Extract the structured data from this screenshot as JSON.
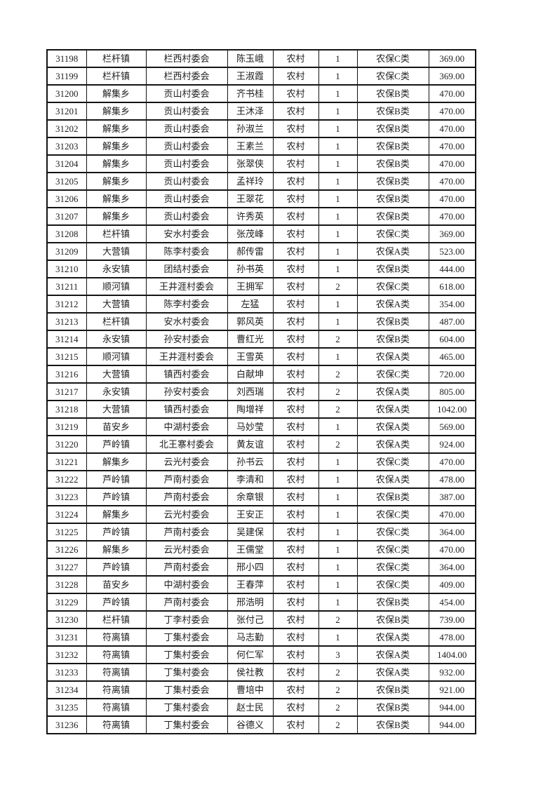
{
  "colors": {
    "page_background": "#ffffff",
    "table_border": "#141414",
    "text": "#1f1f1f"
  },
  "table": {
    "rows": [
      [
        "31198",
        "栏杆镇",
        "栏西村委会",
        "陈玉峨",
        "农村",
        "1",
        "农保C类",
        "369.00"
      ],
      [
        "31199",
        "栏杆镇",
        "栏西村委会",
        "王淑霞",
        "农村",
        "1",
        "农保C类",
        "369.00"
      ],
      [
        "31200",
        "解集乡",
        "贡山村委会",
        "齐书桂",
        "农村",
        "1",
        "农保B类",
        "470.00"
      ],
      [
        "31201",
        "解集乡",
        "贡山村委会",
        "王沐泽",
        "农村",
        "1",
        "农保B类",
        "470.00"
      ],
      [
        "31202",
        "解集乡",
        "贡山村委会",
        "孙淑兰",
        "农村",
        "1",
        "农保B类",
        "470.00"
      ],
      [
        "31203",
        "解集乡",
        "贡山村委会",
        "王素兰",
        "农村",
        "1",
        "农保B类",
        "470.00"
      ],
      [
        "31204",
        "解集乡",
        "贡山村委会",
        "张翠侠",
        "农村",
        "1",
        "农保B类",
        "470.00"
      ],
      [
        "31205",
        "解集乡",
        "贡山村委会",
        "孟祥玲",
        "农村",
        "1",
        "农保B类",
        "470.00"
      ],
      [
        "31206",
        "解集乡",
        "贡山村委会",
        "王翠花",
        "农村",
        "1",
        "农保B类",
        "470.00"
      ],
      [
        "31207",
        "解集乡",
        "贡山村委会",
        "许秀英",
        "农村",
        "1",
        "农保B类",
        "470.00"
      ],
      [
        "31208",
        "栏杆镇",
        "安水村委会",
        "张茂峰",
        "农村",
        "1",
        "农保C类",
        "369.00"
      ],
      [
        "31209",
        "大营镇",
        "陈李村委会",
        "郝传雷",
        "农村",
        "1",
        "农保A类",
        "523.00"
      ],
      [
        "31210",
        "永安镇",
        "团结村委会",
        "孙书英",
        "农村",
        "1",
        "农保B类",
        "444.00"
      ],
      [
        "31211",
        "顺河镇",
        "王井涯村委会",
        "王拥军",
        "农村",
        "2",
        "农保C类",
        "618.00"
      ],
      [
        "31212",
        "大营镇",
        "陈李村委会",
        "左猛",
        "农村",
        "1",
        "农保A类",
        "354.00"
      ],
      [
        "31213",
        "栏杆镇",
        "安水村委会",
        "郭风英",
        "农村",
        "1",
        "农保B类",
        "487.00"
      ],
      [
        "31214",
        "永安镇",
        "孙安村委会",
        "曹红光",
        "农村",
        "2",
        "农保B类",
        "604.00"
      ],
      [
        "31215",
        "顺河镇",
        "王井涯村委会",
        "王雪英",
        "农村",
        "1",
        "农保A类",
        "465.00"
      ],
      [
        "31216",
        "大营镇",
        "镇西村委会",
        "白献坤",
        "农村",
        "2",
        "农保C类",
        "720.00"
      ],
      [
        "31217",
        "永安镇",
        "孙安村委会",
        "刘西瑞",
        "农村",
        "2",
        "农保A类",
        "805.00"
      ],
      [
        "31218",
        "大营镇",
        "镇西村委会",
        "陶增祥",
        "农村",
        "2",
        "农保A类",
        "1042.00"
      ],
      [
        "31219",
        "苗安乡",
        "中湖村委会",
        "马妙莹",
        "农村",
        "1",
        "农保A类",
        "569.00"
      ],
      [
        "31220",
        "芦岭镇",
        "北王寨村委会",
        "黄友谊",
        "农村",
        "2",
        "农保A类",
        "924.00"
      ],
      [
        "31221",
        "解集乡",
        "云光村委会",
        "孙书云",
        "农村",
        "1",
        "农保C类",
        "470.00"
      ],
      [
        "31222",
        "芦岭镇",
        "芦南村委会",
        "李清和",
        "农村",
        "1",
        "农保A类",
        "478.00"
      ],
      [
        "31223",
        "芦岭镇",
        "芦南村委会",
        "余章银",
        "农村",
        "1",
        "农保B类",
        "387.00"
      ],
      [
        "31224",
        "解集乡",
        "云光村委会",
        "王安正",
        "农村",
        "1",
        "农保C类",
        "470.00"
      ],
      [
        "31225",
        "芦岭镇",
        "芦南村委会",
        "吴建保",
        "农村",
        "1",
        "农保C类",
        "364.00"
      ],
      [
        "31226",
        "解集乡",
        "云光村委会",
        "王儒堂",
        "农村",
        "1",
        "农保C类",
        "470.00"
      ],
      [
        "31227",
        "芦岭镇",
        "芦南村委会",
        "邢小四",
        "农村",
        "1",
        "农保C类",
        "364.00"
      ],
      [
        "31228",
        "苗安乡",
        "中湖村委会",
        "王春萍",
        "农村",
        "1",
        "农保C类",
        "409.00"
      ],
      [
        "31229",
        "芦岭镇",
        "芦南村委会",
        "邢浩明",
        "农村",
        "1",
        "农保B类",
        "454.00"
      ],
      [
        "31230",
        "栏杆镇",
        "丁李村委会",
        "张付己",
        "农村",
        "2",
        "农保B类",
        "739.00"
      ],
      [
        "31231",
        "符离镇",
        "丁集村委会",
        "马志勤",
        "农村",
        "1",
        "农保A类",
        "478.00"
      ],
      [
        "31232",
        "符离镇",
        "丁集村委会",
        "何仁军",
        "农村",
        "3",
        "农保A类",
        "1404.00"
      ],
      [
        "31233",
        "符离镇",
        "丁集村委会",
        "侯社教",
        "农村",
        "2",
        "农保A类",
        "932.00"
      ],
      [
        "31234",
        "符离镇",
        "丁集村委会",
        "曹培中",
        "农村",
        "2",
        "农保B类",
        "921.00"
      ],
      [
        "31235",
        "符离镇",
        "丁集村委会",
        "赵士民",
        "农村",
        "2",
        "农保B类",
        "944.00"
      ],
      [
        "31236",
        "符离镇",
        "丁集村委会",
        "谷德义",
        "农村",
        "2",
        "农保B类",
        "944.00"
      ]
    ]
  }
}
